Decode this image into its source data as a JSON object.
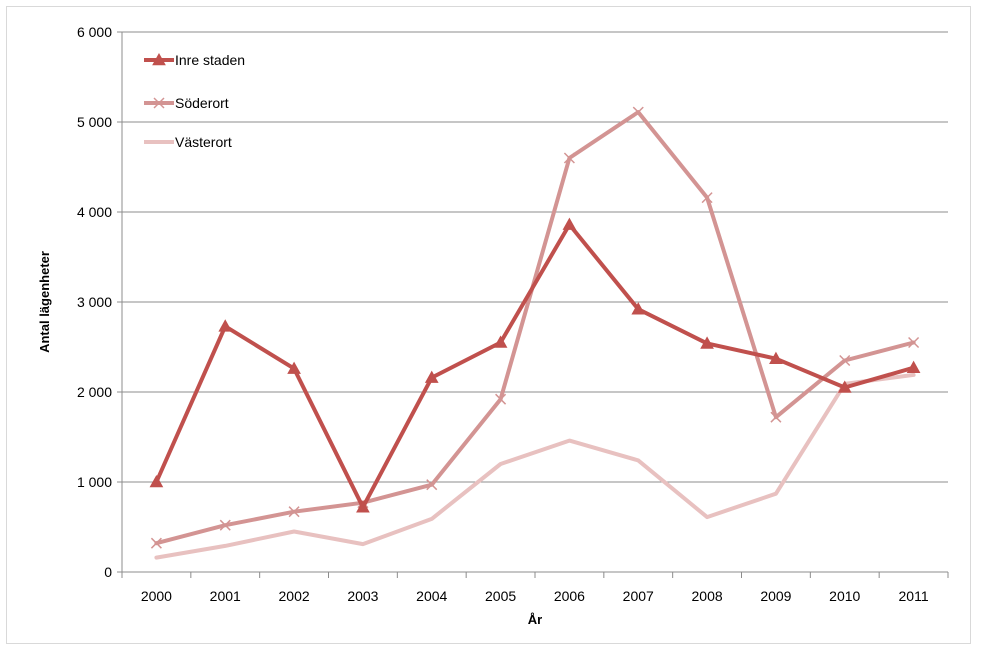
{
  "chart_data": {
    "type": "line",
    "title": "",
    "xlabel": "År",
    "ylabel": "Antal lägenheter",
    "categories": [
      "2000",
      "2001",
      "2002",
      "2003",
      "2004",
      "2005",
      "2006",
      "2007",
      "2008",
      "2009",
      "2010",
      "2011"
    ],
    "ylim": [
      0,
      6000
    ],
    "yticks": [
      0,
      1000,
      2000,
      3000,
      4000,
      5000,
      6000
    ],
    "ytick_labels": [
      "0",
      "1 000",
      "2 000",
      "3 000",
      "4 000",
      "5 000",
      "6 000"
    ],
    "grid": true,
    "legend_position": "top-left",
    "series": [
      {
        "name": "Inre staden",
        "color": "#c0504d",
        "marker": "triangle",
        "values": [
          1000,
          2730,
          2260,
          720,
          2160,
          2550,
          3860,
          2920,
          2540,
          2370,
          2050,
          2270
        ]
      },
      {
        "name": "Söderort",
        "color": "#d39493",
        "marker": "x",
        "values": [
          320,
          520,
          670,
          770,
          970,
          1920,
          4600,
          5110,
          4160,
          1720,
          2350,
          2550
        ]
      },
      {
        "name": "Västerort",
        "color": "#e8c1c0",
        "marker": "none",
        "values": [
          160,
          290,
          450,
          310,
          590,
          1200,
          1460,
          1240,
          610,
          870,
          2090,
          2190
        ]
      }
    ]
  }
}
